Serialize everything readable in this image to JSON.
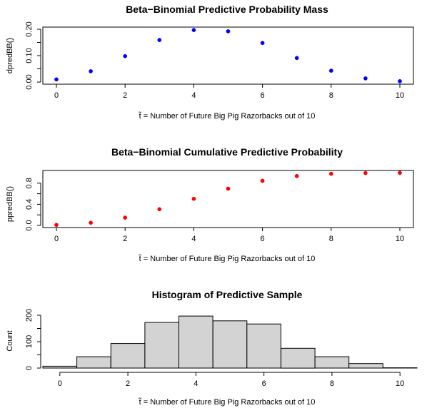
{
  "chart_data": [
    {
      "type": "scatter",
      "title": "Beta−Binomial Predictive Probability Mass",
      "xlabel_symbol": "t̃",
      "xlabel": "= Number of Future Big Pig Razorbacks out of 10",
      "ylabel": "dpredBB()",
      "x": [
        0,
        1,
        2,
        3,
        4,
        5,
        6,
        7,
        8,
        9,
        10
      ],
      "y": [
        0.01,
        0.041,
        0.098,
        0.159,
        0.197,
        0.192,
        0.148,
        0.091,
        0.043,
        0.014,
        0.003
      ],
      "xticks": [
        "0",
        "2",
        "4",
        "6",
        "8",
        "10"
      ],
      "yticks": [
        "0.00",
        "0.10",
        "0.20"
      ],
      "xlim": [
        0,
        10
      ],
      "ylim": [
        0,
        0.2
      ],
      "point_color": "#0000ff",
      "grid": false
    },
    {
      "type": "scatter",
      "title": "Beta−Binomial Cumulative Predictive Probability",
      "xlabel_symbol": "t̃",
      "xlabel": "= Number of Future Big Pig Razorbacks out of 10",
      "ylabel": "ppredBB()",
      "x": [
        0,
        1,
        2,
        3,
        4,
        5,
        6,
        7,
        8,
        9,
        10
      ],
      "y": [
        0.01,
        0.05,
        0.148,
        0.307,
        0.504,
        0.696,
        0.844,
        0.935,
        0.978,
        0.992,
        0.995
      ],
      "xticks": [
        "0",
        "2",
        "4",
        "6",
        "8",
        "10"
      ],
      "yticks": [
        "0.0",
        "0.4",
        "0.8"
      ],
      "xlim": [
        0,
        10
      ],
      "ylim": [
        0,
        1
      ],
      "point_color": "#ff0000",
      "grid": false
    },
    {
      "type": "bar",
      "title": "Histogram of Predictive Sample",
      "xlabel_symbol": "t̃",
      "xlabel": "= Number of Future Big Pig Razorbacks out of 10",
      "ylabel": "Count",
      "bins": [
        {
          "from": -0.5,
          "to": 0.5,
          "count": 7
        },
        {
          "from": 0.5,
          "to": 1.5,
          "count": 43
        },
        {
          "from": 1.5,
          "to": 2.5,
          "count": 93
        },
        {
          "from": 2.5,
          "to": 3.5,
          "count": 173
        },
        {
          "from": 3.5,
          "to": 4.5,
          "count": 197
        },
        {
          "from": 4.5,
          "to": 5.5,
          "count": 179
        },
        {
          "from": 5.5,
          "to": 6.5,
          "count": 167
        },
        {
          "from": 6.5,
          "to": 7.5,
          "count": 75
        },
        {
          "from": 7.5,
          "to": 8.5,
          "count": 43
        },
        {
          "from": 8.5,
          "to": 9.5,
          "count": 17
        },
        {
          "from": 9.5,
          "to": 10.5,
          "count": 1
        }
      ],
      "xticks": [
        "0",
        "2",
        "4",
        "6",
        "8",
        "10"
      ],
      "yticks": [
        "0",
        "100",
        "200"
      ],
      "xlim": [
        -0.5,
        10.5
      ],
      "ylim": [
        0,
        200
      ],
      "bar_fill": "#d3d3d3",
      "bar_stroke": "#000000",
      "grid": false
    }
  ]
}
